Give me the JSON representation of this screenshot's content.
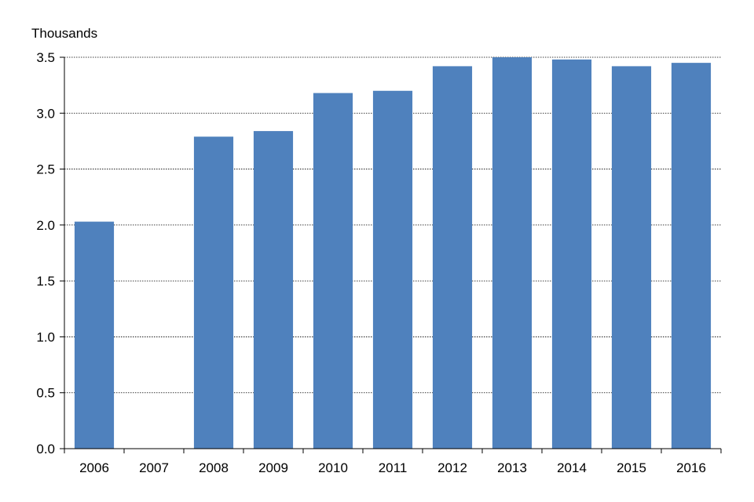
{
  "chart_data": {
    "type": "bar",
    "title": "",
    "xlabel": "",
    "ylabel": "Thousands",
    "categories": [
      "2006",
      "2007",
      "2008",
      "2009",
      "2010",
      "2011",
      "2012",
      "2013",
      "2014",
      "2015",
      "2016"
    ],
    "values": [
      2.03,
      null,
      2.79,
      2.84,
      3.18,
      3.2,
      3.42,
      3.5,
      3.48,
      3.42,
      3.45
    ],
    "ylim": [
      0,
      3.5
    ],
    "yticks": [
      "0.0",
      "0.5",
      "1.0",
      "1.5",
      "2.0",
      "2.5",
      "3.0",
      "3.5"
    ],
    "grid": true,
    "legend": "none",
    "colors": {
      "bar": "#4f81bd",
      "grid": "#000000",
      "axis": "#000000"
    }
  }
}
